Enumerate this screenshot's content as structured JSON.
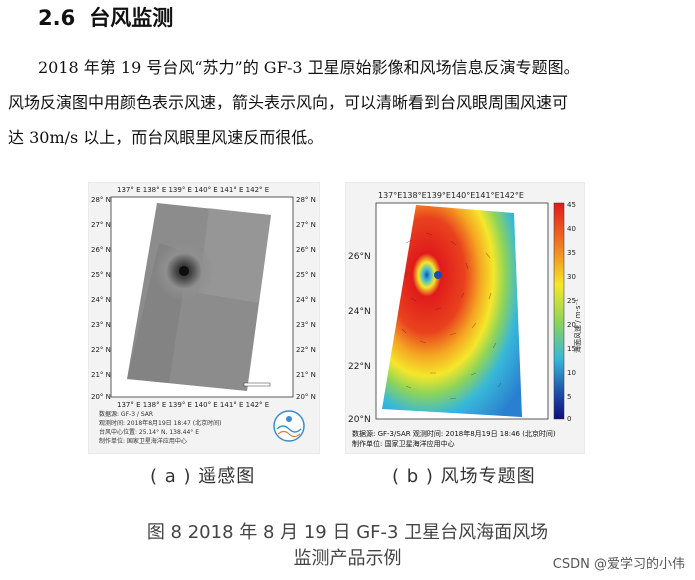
{
  "section": {
    "number": "2.6",
    "title": "台风监测"
  },
  "paragraph": [
    "2018 年第 19 号台风“苏力”的 GF-3 卫星原始影像和风场信息反演专题图。",
    "风场反演图中用颜色表示风速，箭头表示风向，可以清晰看到台风眼周围风速可",
    "达 30m/s 以上，而台风眼里风速反而很低。"
  ],
  "figure_a": {
    "label": "( a ) 遥感图",
    "top_ticks": "137° E 138° E 139° E 140° E 141° E 142° E",
    "bottom_ticks": "137° E 138° E 139° E 140° E 141° E 142° E",
    "lat_ticks": [
      "28° N",
      "27° N",
      "26° N",
      "25° N",
      "24° N",
      "23° N",
      "22° N",
      "21° N",
      "20° N"
    ],
    "meta": [
      "数据源: GF-3 / SAR",
      "观测时间: 2018年8月19日 18:47 (北京时间)",
      "台风中心位置: 25.14° N, 138.44° E",
      "制作单位: 国家卫星海洋应用中心"
    ]
  },
  "figure_b": {
    "label": "( b ) 风场专题图",
    "top_ticks": "137°E138°E139°E140°E141°E142°E",
    "lat_ticks": [
      "26°N",
      "24°N",
      "22°N",
      "20°N"
    ],
    "colorbar_ticks": [
      "45",
      "40",
      "35",
      "30",
      "25",
      "20",
      "15",
      "10",
      "5",
      "0"
    ],
    "colorbar_title": "海面风速 / m·s⁻¹",
    "meta": [
      "数据源: GF-3/SAR   观测时间: 2018年8月19日 18:46 (北京时间)",
      "制作单位: 国家卫星海洋应用中心"
    ],
    "colors": [
      "#e01b1b",
      "#f07e21",
      "#f5e72a",
      "#8dd45a",
      "#38b8d9",
      "#1c4ea9",
      "#100c7a"
    ]
  },
  "caption": [
    "图 8  2018 年 8 月 19 日 GF-3 卫星台风海面风场",
    "监测产品示例"
  ],
  "watermark": "CSDN @爱学习的小伟"
}
